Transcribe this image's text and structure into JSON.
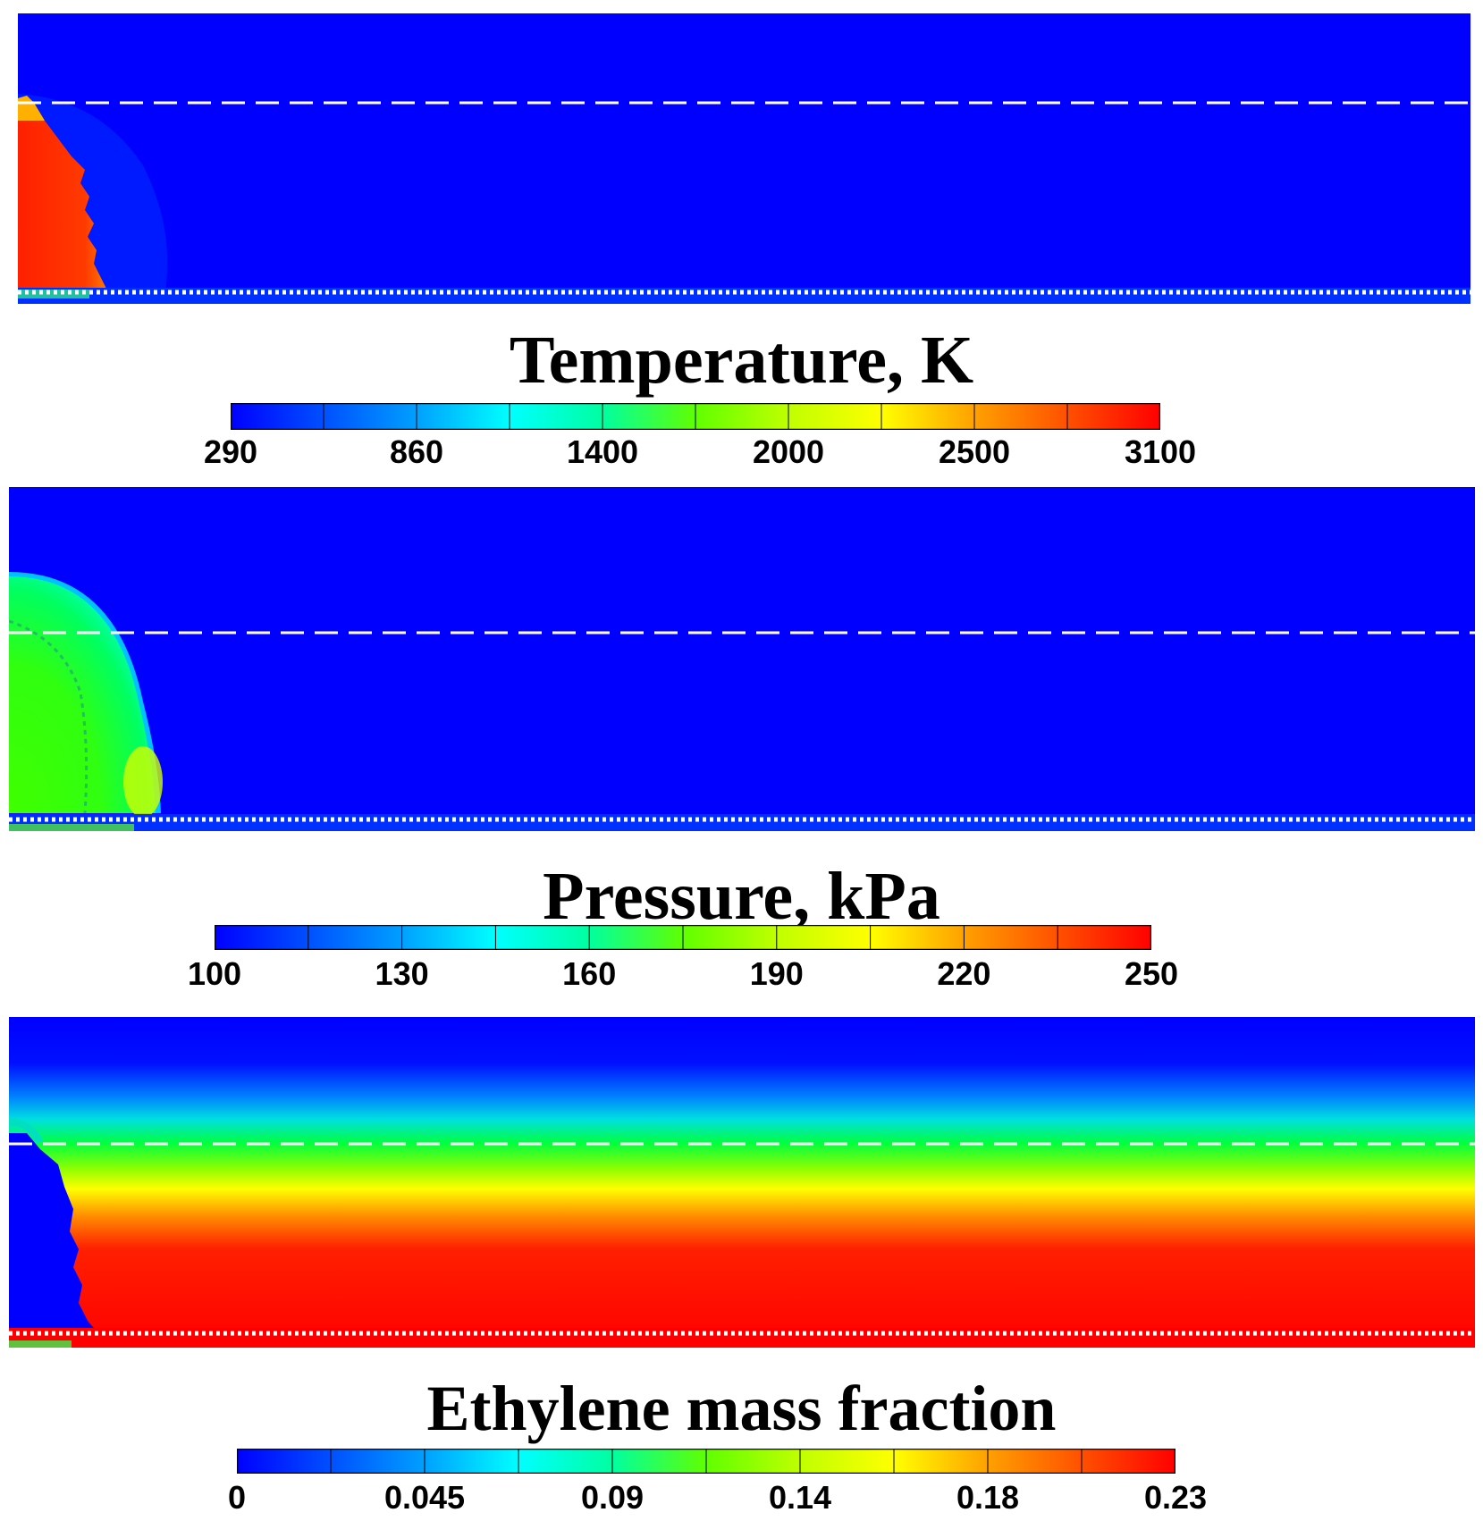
{
  "figure": {
    "panels": [
      {
        "id": "temperature",
        "colorbar_title": "Temperature, K",
        "colorbar_ticks": [
          "290",
          "860",
          "1400",
          "2000",
          "2500",
          "3100"
        ],
        "range": [
          290,
          3100
        ]
      },
      {
        "id": "pressure",
        "colorbar_title": "Pressure, kPa",
        "colorbar_ticks": [
          "100",
          "130",
          "160",
          "190",
          "220",
          "250"
        ],
        "range": [
          100,
          250
        ]
      },
      {
        "id": "ethylene",
        "colorbar_title": "Ethylene mass fraction",
        "colorbar_ticks": [
          "0",
          "0.045",
          "0.09",
          "0.14",
          "0.18",
          "0.23"
        ],
        "range": [
          0,
          0.23
        ]
      }
    ],
    "colormap": [
      "#0000ff",
      "#0050ff",
      "#00a0ff",
      "#00ffff",
      "#00ffa0",
      "#00ff00",
      "#60ff00",
      "#c0ff00",
      "#ffff00",
      "#ffa000",
      "#ff5000",
      "#ff0000"
    ]
  }
}
